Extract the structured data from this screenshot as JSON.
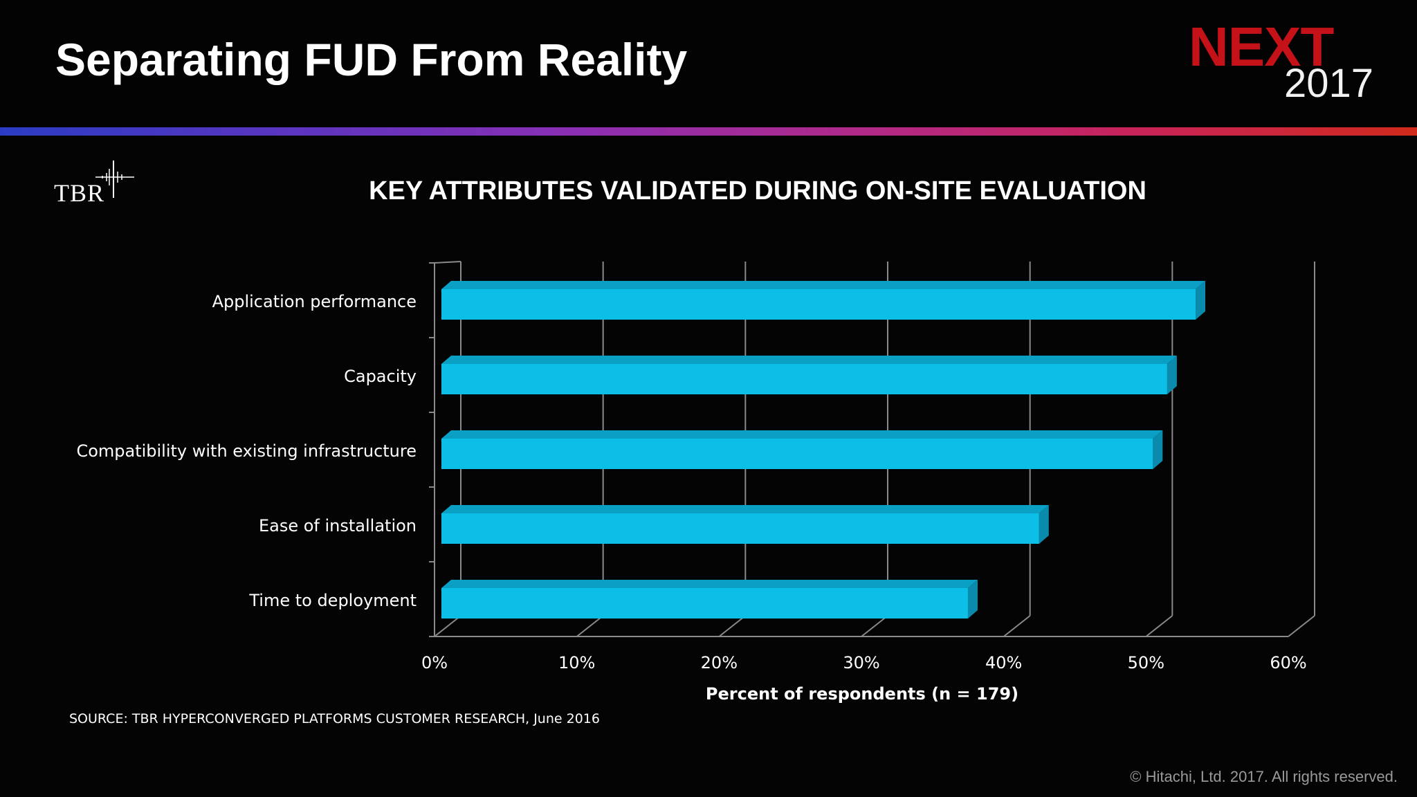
{
  "header": {
    "title": "Separating FUD From Reality",
    "logo_next": "NEXT",
    "logo_year": "2017"
  },
  "brand": {
    "tbr_logo_text": "TBR"
  },
  "chart_data": {
    "type": "bar",
    "orientation": "horizontal",
    "style": "3d",
    "title": "KEY ATTRIBUTES VALIDATED DURING ON-SITE EVALUATION",
    "xlabel": "Percent of respondents (n = 179)",
    "ylabel": "",
    "categories": [
      "Application performance",
      "Capacity",
      "Compatibility with existing infrastructure",
      "Ease of installation",
      "Time to deployment"
    ],
    "values": [
      53,
      51,
      50,
      42,
      37
    ],
    "xlim": [
      0,
      60
    ],
    "ticks": [
      "0%",
      "10%",
      "20%",
      "30%",
      "40%",
      "50%",
      "60%"
    ],
    "grid": true,
    "bar_color": "#0bbfe6",
    "bar_top_color": "#0a9fc4",
    "bar_side_color": "#0a8aac"
  },
  "footer": {
    "source": "SOURCE: TBR HYPERCONVERGED PLATFORMS CUSTOMER RESEARCH, June 2016",
    "copyright": "© Hitachi, Ltd. 2017. All rights reserved."
  },
  "colors": {
    "background": "#040404",
    "accent_red": "#c41218"
  }
}
